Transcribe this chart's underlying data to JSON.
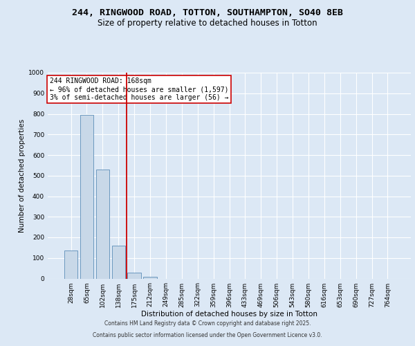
{
  "title_line1": "244, RINGWOOD ROAD, TOTTON, SOUTHAMPTON, SO40 8EB",
  "title_line2": "Size of property relative to detached houses in Totton",
  "xlabel": "Distribution of detached houses by size in Totton",
  "ylabel": "Number of detached properties",
  "categories": [
    "28sqm",
    "65sqm",
    "102sqm",
    "138sqm",
    "175sqm",
    "212sqm",
    "249sqm",
    "285sqm",
    "322sqm",
    "359sqm",
    "396sqm",
    "433sqm",
    "469sqm",
    "506sqm",
    "543sqm",
    "580sqm",
    "616sqm",
    "653sqm",
    "690sqm",
    "727sqm",
    "764sqm"
  ],
  "values": [
    135,
    795,
    530,
    160,
    30,
    8,
    0,
    0,
    0,
    0,
    0,
    0,
    0,
    0,
    0,
    0,
    0,
    0,
    0,
    0,
    0
  ],
  "bar_color": "#c8d8e8",
  "bar_edgecolor": "#5b8db8",
  "ylim": [
    0,
    1000
  ],
  "yticks": [
    0,
    100,
    200,
    300,
    400,
    500,
    600,
    700,
    800,
    900,
    1000
  ],
  "vline_x": 3.5,
  "vline_color": "#cc0000",
  "annotation_text": "244 RINGWOOD ROAD: 168sqm\n← 96% of detached houses are smaller (1,597)\n3% of semi-detached houses are larger (56) →",
  "annotation_box_color": "#ffffff",
  "annotation_box_edgecolor": "#cc0000",
  "footer_line1": "Contains HM Land Registry data © Crown copyright and database right 2025.",
  "footer_line2": "Contains public sector information licensed under the Open Government Licence v3.0.",
  "bg_color": "#dce8f5",
  "plot_bg_color": "#dce8f5",
  "grid_color": "#ffffff",
  "title_fontsize": 9.5,
  "subtitle_fontsize": 8.5,
  "axis_label_fontsize": 7.5,
  "tick_fontsize": 6.5,
  "annotation_fontsize": 7,
  "footer_fontsize": 5.5
}
